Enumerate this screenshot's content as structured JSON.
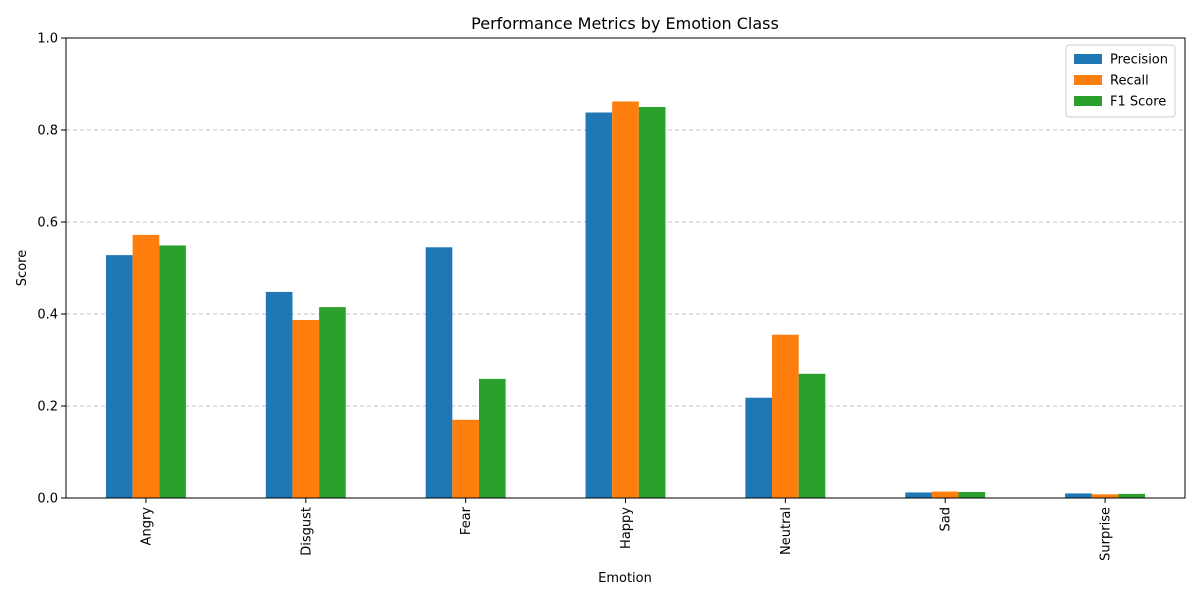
{
  "chart_data": {
    "type": "bar",
    "title": "Performance Metrics by Emotion Class",
    "xlabel": "Emotion",
    "ylabel": "Score",
    "ylim": [
      0,
      1.0
    ],
    "yticks": [
      0.0,
      0.2,
      0.4,
      0.6,
      0.8,
      1.0
    ],
    "ytick_labels": [
      "0.0",
      "0.2",
      "0.4",
      "0.6",
      "0.8",
      "1.0"
    ],
    "categories": [
      "Angry",
      "Disgust",
      "Fear",
      "Happy",
      "Neutral",
      "Sad",
      "Surprise"
    ],
    "series": [
      {
        "name": "Precision",
        "color": "#1f77b4",
        "values": [
          0.528,
          0.448,
          0.545,
          0.838,
          0.218,
          0.012,
          0.01
        ]
      },
      {
        "name": "Recall",
        "color": "#ff7f0e",
        "values": [
          0.572,
          0.387,
          0.17,
          0.862,
          0.355,
          0.014,
          0.008
        ]
      },
      {
        "name": "F1 Score",
        "color": "#2ca02c",
        "values": [
          0.549,
          0.415,
          0.259,
          0.85,
          0.27,
          0.013,
          0.009
        ]
      }
    ],
    "grid": "y-dashed",
    "legend_position": "top-right",
    "xtick_rotation": "vertical"
  }
}
